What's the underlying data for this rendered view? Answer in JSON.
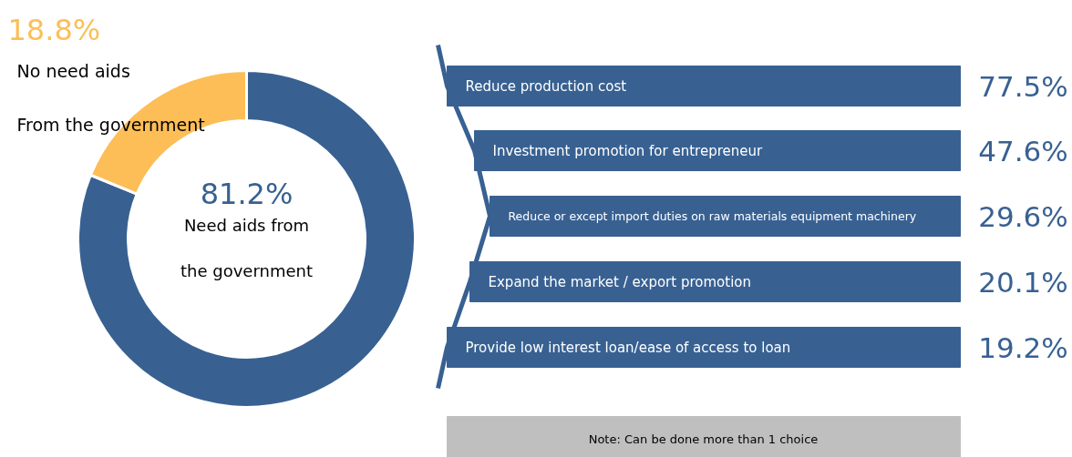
{
  "chart_data": [
    {
      "type": "donut",
      "categories": [
        "Need aids from\nthe government",
        "No need aids\nFrom the government"
      ],
      "values": [
        81.2,
        18.8
      ],
      "colors": [
        "#386192",
        "#fdbe57"
      ],
      "value_labels": [
        "81.2%",
        "18.8%"
      ]
    },
    {
      "type": "other",
      "categories": [
        "Reduce production cost",
        "Investment promotion for entrepreneur",
        "Reduce or except import duties on raw materials equipment machinery",
        "Expand the market / export promotion",
        "Provide low interest loan/ease of access to loan"
      ],
      "values": [
        77.5,
        47.6,
        29.6,
        20.1,
        19.2
      ],
      "value_labels": [
        "77.5%",
        "47.6%",
        "29.6%",
        "20.1%",
        "19.2%"
      ],
      "color": "#386192",
      "annotations": [
        "Note: Can be done more than 1 choice"
      ]
    }
  ]
}
